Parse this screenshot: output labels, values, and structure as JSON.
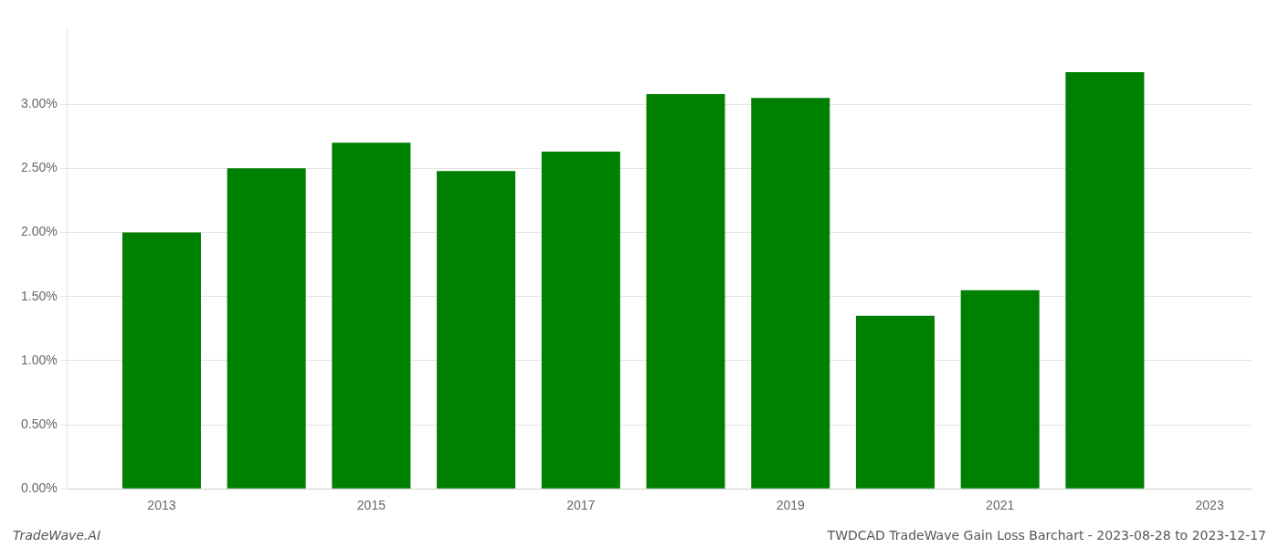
{
  "chart_data": {
    "type": "bar",
    "x": [
      2013,
      2014,
      2015,
      2016,
      2017,
      2018,
      2019,
      2020,
      2021,
      2022
    ],
    "values": [
      0.02,
      0.025,
      0.027,
      0.0248,
      0.0263,
      0.0308,
      0.0305,
      0.0135,
      0.0155,
      0.0325
    ],
    "color": "#008000",
    "xlim": [
      2012.1,
      2023.4
    ],
    "xticks": [
      2013,
      2015,
      2017,
      2019,
      2021,
      2023
    ],
    "ylim": [
      0,
      0.036
    ],
    "yticks": [
      {
        "value": 0.0,
        "label": "0.00%"
      },
      {
        "value": 0.005,
        "label": "0.50%"
      },
      {
        "value": 0.01,
        "label": "1.00%"
      },
      {
        "value": 0.015,
        "label": "1.50%"
      },
      {
        "value": 0.02,
        "label": "2.00%"
      },
      {
        "value": 0.025,
        "label": "2.50%"
      },
      {
        "value": 0.03,
        "label": "3.00%"
      }
    ],
    "grid": true,
    "annotations": [
      "TradeWave.AI",
      "TWDCAD TradeWave Gain Loss Barchart - 2023-08-28 to 2023-12-17"
    ]
  }
}
